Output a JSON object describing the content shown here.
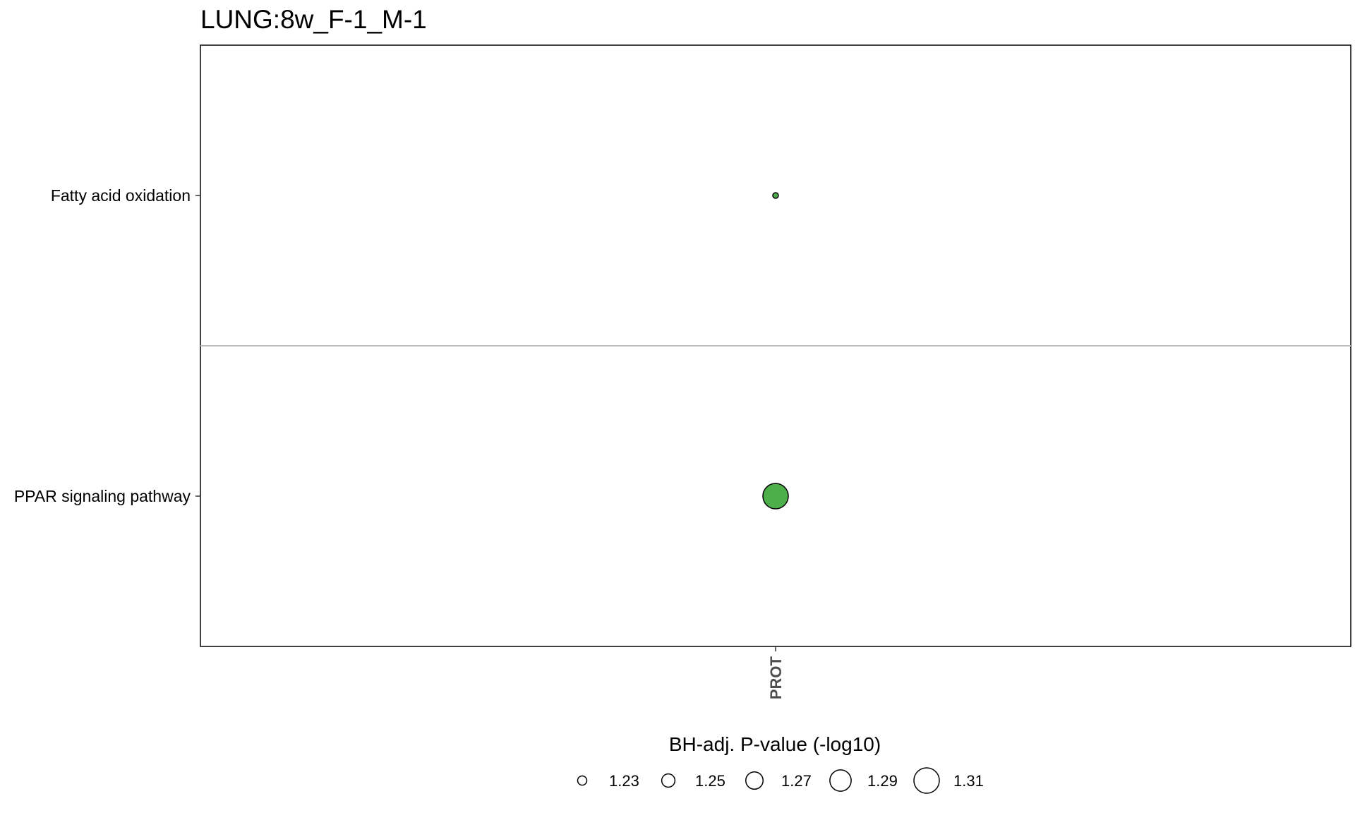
{
  "chart_data": {
    "type": "scatter",
    "title": "LUNG:8w_F-1_M-1",
    "xlabel": "",
    "ylabel": "",
    "x_categories": [
      "PROT"
    ],
    "y_categories": [
      "Fatty acid oxidation",
      "PPAR signaling pathway"
    ],
    "points": [
      {
        "x": "PROT",
        "y": "Fatty acid oxidation",
        "size_value": 1.23
      },
      {
        "x": "PROT",
        "y": "PPAR signaling pathway",
        "size_value": 1.31
      }
    ],
    "point_color": "#4daf4a",
    "separator_color": "#bebebe",
    "legend": {
      "title": "BH-adj. P-value (-log10)",
      "position": "bottom",
      "entries": [
        "1.23",
        "1.25",
        "1.27",
        "1.29",
        "1.31"
      ],
      "values": [
        1.23,
        1.25,
        1.27,
        1.29,
        1.31
      ]
    },
    "size_range": [
      1.23,
      1.31
    ],
    "grid": false
  }
}
